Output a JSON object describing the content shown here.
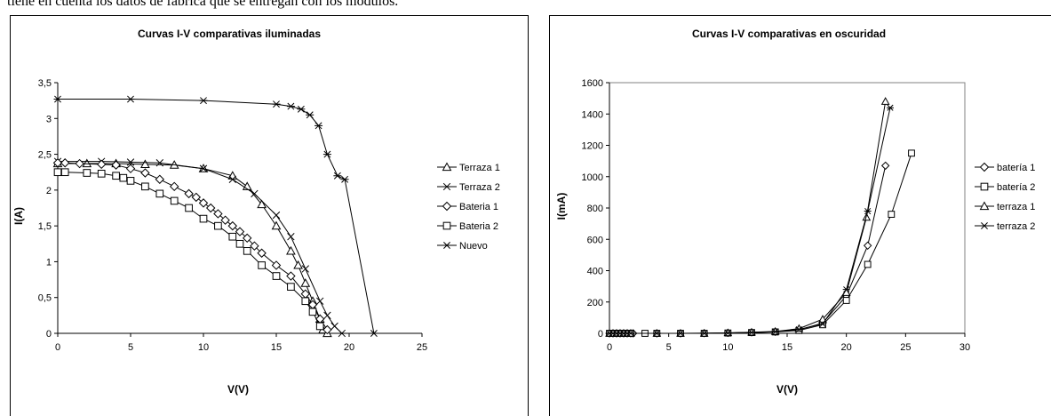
{
  "page": {
    "top_text": "tiene en cuenta los datos de fábrica que se entregan con los módulos."
  },
  "chart_data": [
    {
      "type": "line",
      "title": "Curvas I-V comparativas iluminadas",
      "xlabel": "V(V)",
      "ylabel": "I(A)",
      "xlim": [
        0,
        25
      ],
      "ylim": [
        0,
        3.5
      ],
      "xticks": [
        0,
        5,
        10,
        15,
        20,
        25
      ],
      "yticks": [
        0,
        0.5,
        1,
        1.5,
        2,
        2.5,
        3,
        3.5
      ],
      "xtick_labels": [
        "0",
        "5",
        "10",
        "15",
        "20",
        "25"
      ],
      "ytick_labels": [
        "0",
        "0,5",
        "1",
        "1,5",
        "2",
        "2,5",
        "3",
        "3,5"
      ],
      "grid": false,
      "legend_position": "right",
      "series": [
        {
          "name": "Terraza 1",
          "marker": "triangle",
          "x": [
            0,
            2,
            4,
            6,
            8,
            10,
            12,
            13,
            14,
            15,
            16,
            16.5,
            17,
            17.5,
            18,
            18.2,
            18.5
          ],
          "y": [
            2.37,
            2.37,
            2.37,
            2.36,
            2.35,
            2.3,
            2.2,
            2.05,
            1.8,
            1.5,
            1.15,
            0.95,
            0.7,
            0.45,
            0.2,
            0.05,
            0
          ]
        },
        {
          "name": "Terraza 2",
          "marker": "x",
          "x": [
            0,
            3,
            5,
            7,
            10,
            12,
            13.5,
            15,
            16,
            17,
            18,
            18.5,
            19,
            19.5
          ],
          "y": [
            2.4,
            2.4,
            2.39,
            2.38,
            2.3,
            2.15,
            1.95,
            1.65,
            1.35,
            0.9,
            0.45,
            0.25,
            0.1,
            0
          ]
        },
        {
          "name": "Bateria 1",
          "marker": "diamond",
          "x": [
            0,
            0.5,
            1.5,
            3,
            4,
            5,
            6,
            7,
            8,
            9,
            9.5,
            10,
            10.5,
            11,
            11.5,
            12,
            12.5,
            13,
            13.5,
            14,
            15,
            16,
            17,
            17.5,
            18,
            18.5
          ],
          "y": [
            2.38,
            2.38,
            2.37,
            2.36,
            2.35,
            2.3,
            2.24,
            2.15,
            2.05,
            1.95,
            1.9,
            1.82,
            1.75,
            1.67,
            1.58,
            1.5,
            1.42,
            1.33,
            1.22,
            1.12,
            0.95,
            0.8,
            0.55,
            0.4,
            0.2,
            0.05
          ]
        },
        {
          "name": "Bateria 2",
          "marker": "square",
          "x": [
            0,
            0.5,
            2,
            3,
            4,
            4.5,
            5,
            6,
            7,
            8,
            9,
            10,
            11,
            12,
            12.5,
            13,
            14,
            15,
            16,
            17,
            17.5,
            18
          ],
          "y": [
            2.25,
            2.25,
            2.24,
            2.23,
            2.2,
            2.17,
            2.13,
            2.05,
            1.95,
            1.85,
            1.75,
            1.6,
            1.5,
            1.35,
            1.25,
            1.15,
            0.95,
            0.8,
            0.65,
            0.45,
            0.3,
            0.1
          ]
        },
        {
          "name": "Nuevo",
          "marker": "asterisk",
          "x": [
            0,
            5,
            10,
            15,
            16,
            16.7,
            17.3,
            17.9,
            18.5,
            19.2,
            19.7,
            21.7
          ],
          "y": [
            3.27,
            3.27,
            3.25,
            3.2,
            3.17,
            3.13,
            3.05,
            2.9,
            2.5,
            2.2,
            2.15,
            0
          ]
        }
      ]
    },
    {
      "type": "line",
      "title": "Curvas I-V comparativas en oscuridad",
      "xlabel": "V(V)",
      "ylabel": "I(mA)",
      "xlim": [
        0,
        30
      ],
      "ylim": [
        0,
        1600
      ],
      "xticks": [
        0,
        5,
        10,
        15,
        20,
        25,
        30
      ],
      "yticks": [
        0,
        200,
        400,
        600,
        800,
        1000,
        1200,
        1400,
        1600
      ],
      "xtick_labels": [
        "0",
        "5",
        "10",
        "15",
        "20",
        "25",
        "30"
      ],
      "ytick_labels": [
        "0",
        "200",
        "400",
        "600",
        "800",
        "1000",
        "1200",
        "1400",
        "1600"
      ],
      "grid": false,
      "legend_position": "right",
      "series": [
        {
          "name": "batería 1",
          "marker": "diamond",
          "x": [
            0,
            0.3,
            0.6,
            0.9,
            1.2,
            1.5,
            1.8,
            2,
            4,
            6,
            8,
            10,
            12,
            14,
            16,
            18,
            20,
            21.8,
            23.3
          ],
          "y": [
            0,
            0,
            0,
            0,
            0,
            0,
            0,
            0,
            0,
            0,
            1,
            3,
            6,
            10,
            22,
            65,
            240,
            560,
            1070
          ]
        },
        {
          "name": "batería 2",
          "marker": "square",
          "x": [
            0,
            0.3,
            0.6,
            0.9,
            1.2,
            1.5,
            1.8,
            3,
            4,
            6,
            8,
            10,
            12,
            14,
            16,
            18,
            20,
            21.8,
            23.8,
            25.5
          ],
          "y": [
            0,
            0,
            0,
            0,
            0,
            0,
            0,
            0,
            0,
            0,
            0,
            2,
            5,
            9,
            18,
            55,
            210,
            440,
            760,
            1150
          ]
        },
        {
          "name": "terraza 1",
          "marker": "triangle",
          "x": [
            0,
            0.3,
            0.6,
            0.9,
            1.2,
            1.5,
            1.8,
            4,
            6,
            8,
            10,
            12,
            14,
            16,
            18,
            20,
            21.7,
            23.3
          ],
          "y": [
            0,
            0,
            0,
            0,
            0,
            0,
            0,
            0,
            0,
            0,
            3,
            7,
            12,
            30,
            90,
            260,
            740,
            1480
          ]
        },
        {
          "name": "terraza 2",
          "marker": "asterisk",
          "x": [
            0,
            0.3,
            0.6,
            0.9,
            1.2,
            1.5,
            1.8,
            4,
            6,
            8,
            10,
            12,
            14,
            16,
            18,
            20,
            21.8,
            23.7
          ],
          "y": [
            0,
            0,
            0,
            0,
            0,
            0,
            0,
            0,
            0,
            0,
            2,
            5,
            10,
            25,
            60,
            280,
            780,
            1440
          ]
        }
      ]
    }
  ]
}
